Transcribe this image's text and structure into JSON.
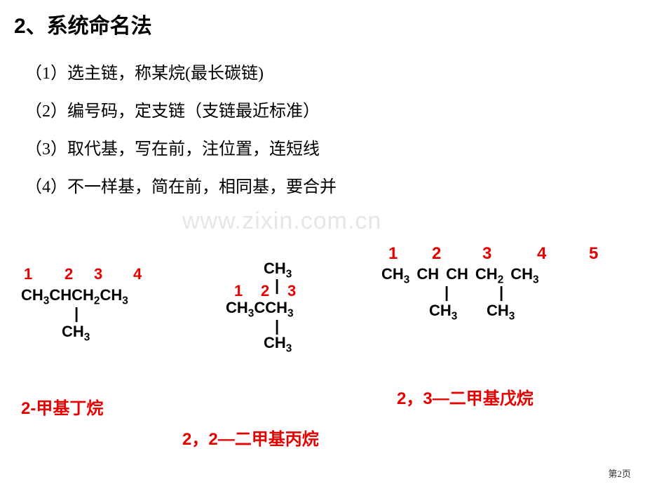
{
  "title": "2、系统命名法",
  "rules": {
    "r1": "（1）选主链，称某烷(最长碳链)",
    "r2": "（2）编号码，定支链（支链最近标准）",
    "r3": "（3）取代基，写在前，注位置，连短线",
    "r4": "（4）不一样基，简在前，相同基，要合并"
  },
  "watermark": "www.zixin.com.cn",
  "page_num": "第2页",
  "structures": {
    "s1": {
      "numbers": [
        "1",
        "2",
        "3",
        "4"
      ],
      "chain_parts": {
        "c1": "CH",
        "s1": "3",
        "c2": "CHCH",
        "s2": "2",
        "c3": "CH",
        "s3": "3"
      },
      "branch": {
        "c": "CH",
        "s": "3"
      },
      "label": "2-甲基丁烷",
      "number_color": "#e60000",
      "text_color": "#000000"
    },
    "s2": {
      "numbers": [
        "1",
        "2",
        "3"
      ],
      "top_branch": {
        "c": "CH",
        "s": "3"
      },
      "chain_parts": {
        "c1": "CH",
        "s1": "3",
        "c2": "CCH",
        "s2": "3"
      },
      "bot_branch": {
        "c": "CH",
        "s": "3"
      },
      "label": "2，2—二甲基丙烷",
      "number_color": "#e60000",
      "text_color": "#000000"
    },
    "s3": {
      "numbers": [
        "1",
        "2",
        "3",
        "4",
        "5"
      ],
      "chain_parts": {
        "c1": "CH",
        "s1": "3",
        "c2": "CH",
        "c3": "CH",
        "c4": "CH",
        "s4": "2",
        "c5": "CH",
        "s5": "3"
      },
      "branch1": {
        "c": "CH",
        "s": "3"
      },
      "branch2": {
        "c": "CH",
        "s": "3"
      },
      "label": "2，3—二甲基戊烷",
      "number_color": "#e60000",
      "text_color": "#000000"
    }
  },
  "style": {
    "title_fontsize": 30,
    "rule_fontsize": 24,
    "struct_fontsize": 22,
    "label_fontsize": 24,
    "red": "#e60000",
    "black": "#000000",
    "background": "#ffffff",
    "watermark_color": "#e6e6e6"
  }
}
